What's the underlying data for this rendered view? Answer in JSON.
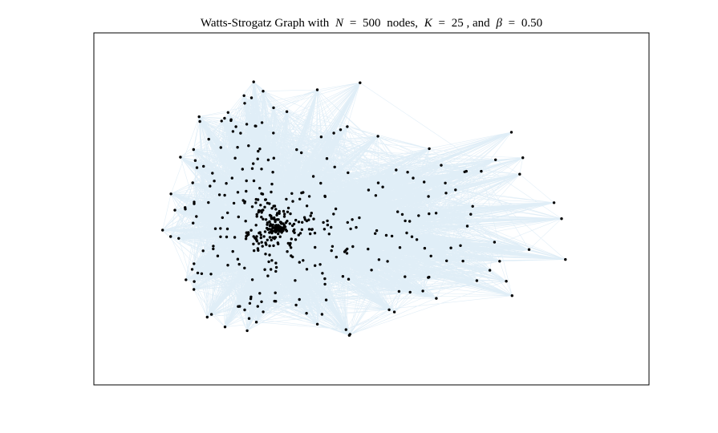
{
  "chart_data": {
    "type": "graph",
    "title": {
      "lead": "Watts-Strogatz Graph with",
      "n_symbol": "N",
      "eq": "=",
      "n": 500,
      "n_unit": "nodes,",
      "k_symbol": "K",
      "k": 25,
      "k_tail": ", and",
      "beta_symbol": "β",
      "beta": {
        "value": 0.5,
        "label": "0.50"
      }
    },
    "edge_color": "#0072bd",
    "node_color": "#000000"
  }
}
